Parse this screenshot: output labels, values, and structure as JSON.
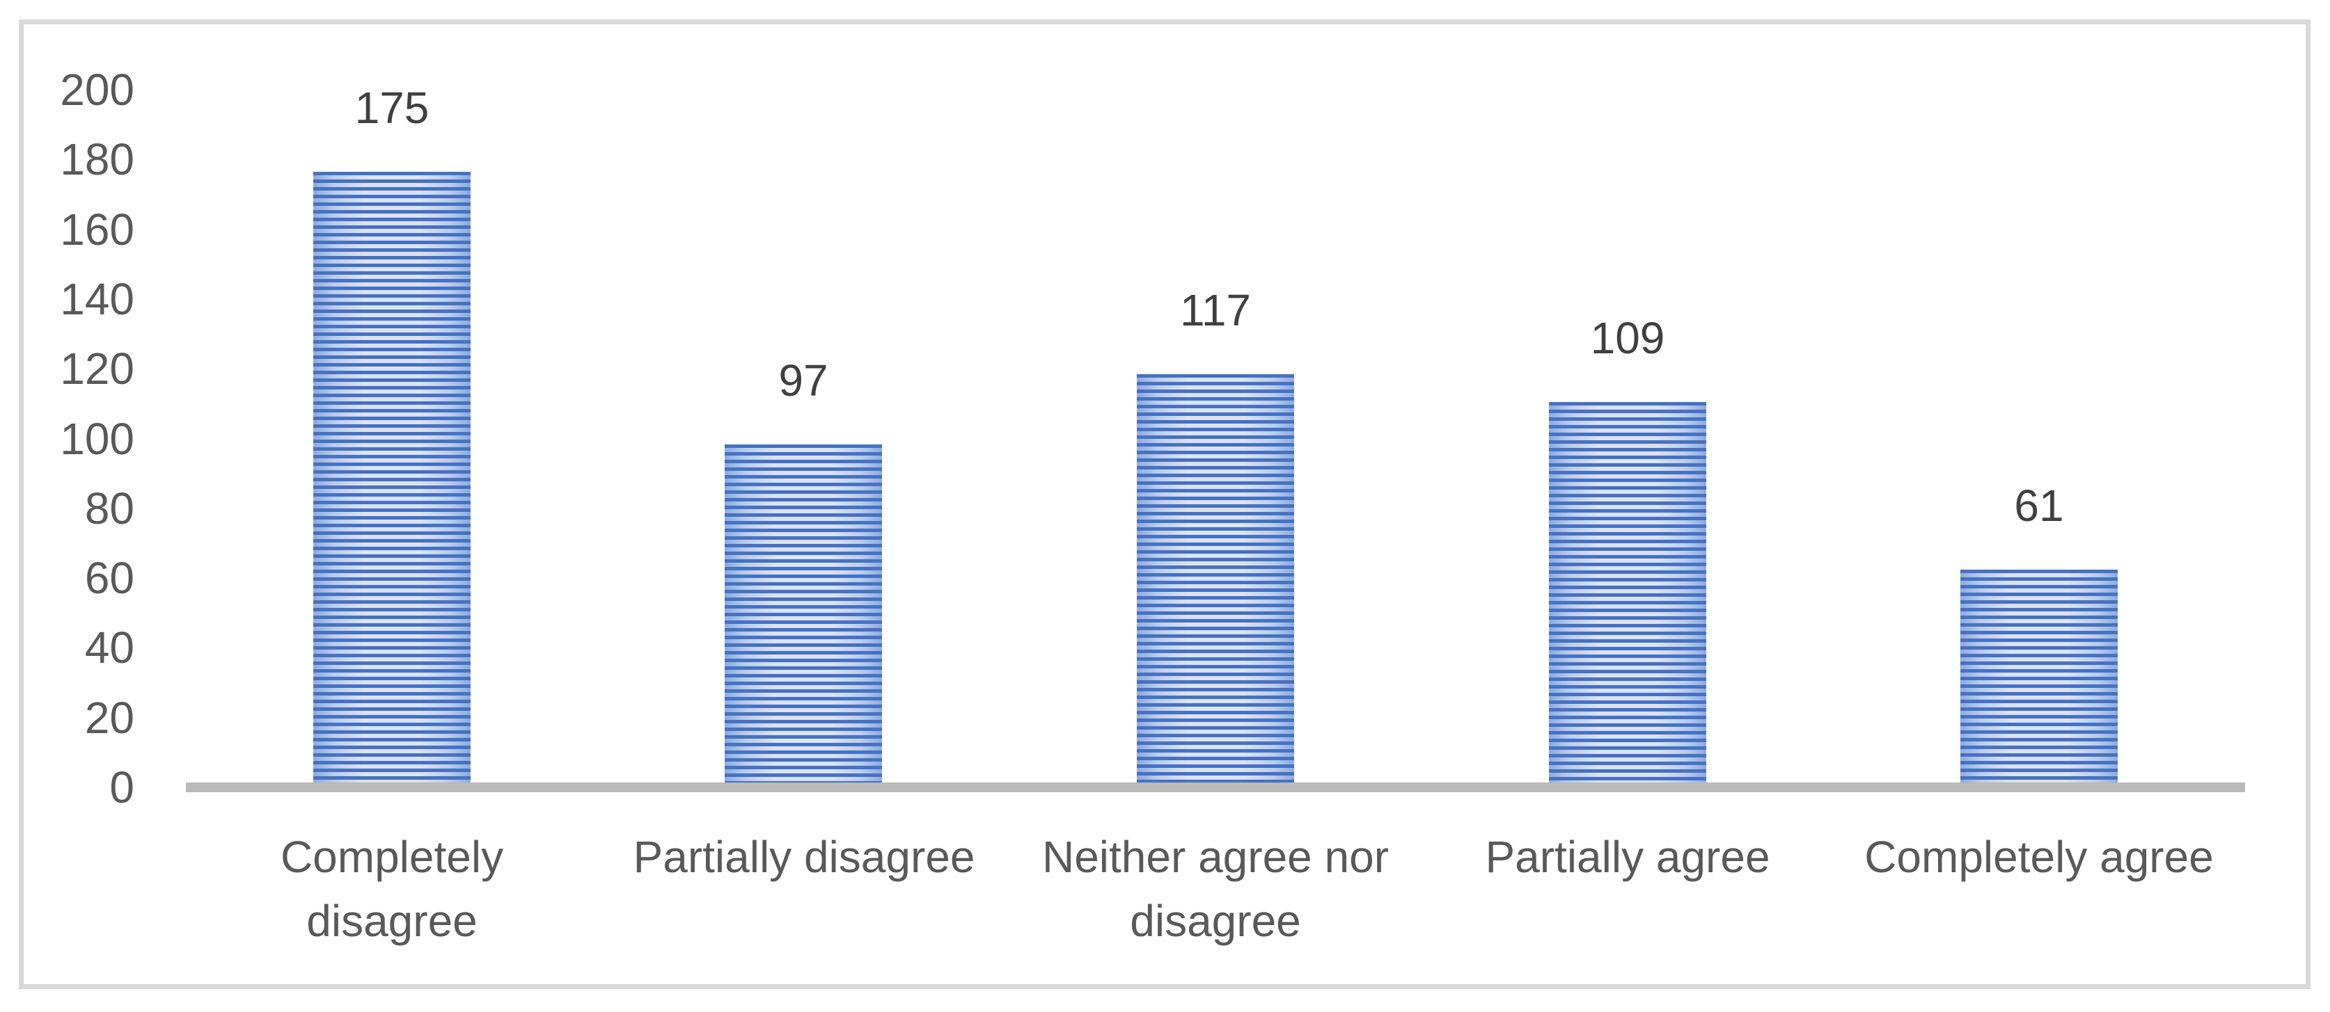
{
  "chart_data": {
    "type": "bar",
    "title": "",
    "xlabel": "",
    "ylabel": "",
    "categories": [
      "Completely disagree",
      "Partially disagree",
      "Neither agree nor disagree",
      "Partially agree",
      "Completely agree"
    ],
    "wrapped_labels": [
      "Completely\ndisagree",
      "Partially disagree",
      "Neither agree nor\ndisagree",
      "Partially agree",
      "Completely agree"
    ],
    "values": [
      175,
      97,
      117,
      109,
      61
    ],
    "data_labels": [
      "175",
      "97",
      "117",
      "109",
      "61"
    ],
    "yticks": [
      0,
      20,
      40,
      60,
      80,
      100,
      120,
      140,
      160,
      180,
      200
    ],
    "ylim": [
      0,
      200
    ],
    "grid": false,
    "legend": false,
    "bar_fill_pattern": "horizontal-stripes",
    "colors": {
      "bar_stripe_dark": "#4472C4",
      "bar_stripe_light": "#DBE3F4",
      "axis_line": "#B9B9B9",
      "tick_text": "#595959",
      "data_label_text": "#404040",
      "frame_border": "#D9D9D9",
      "background": "#FFFFFF"
    }
  }
}
